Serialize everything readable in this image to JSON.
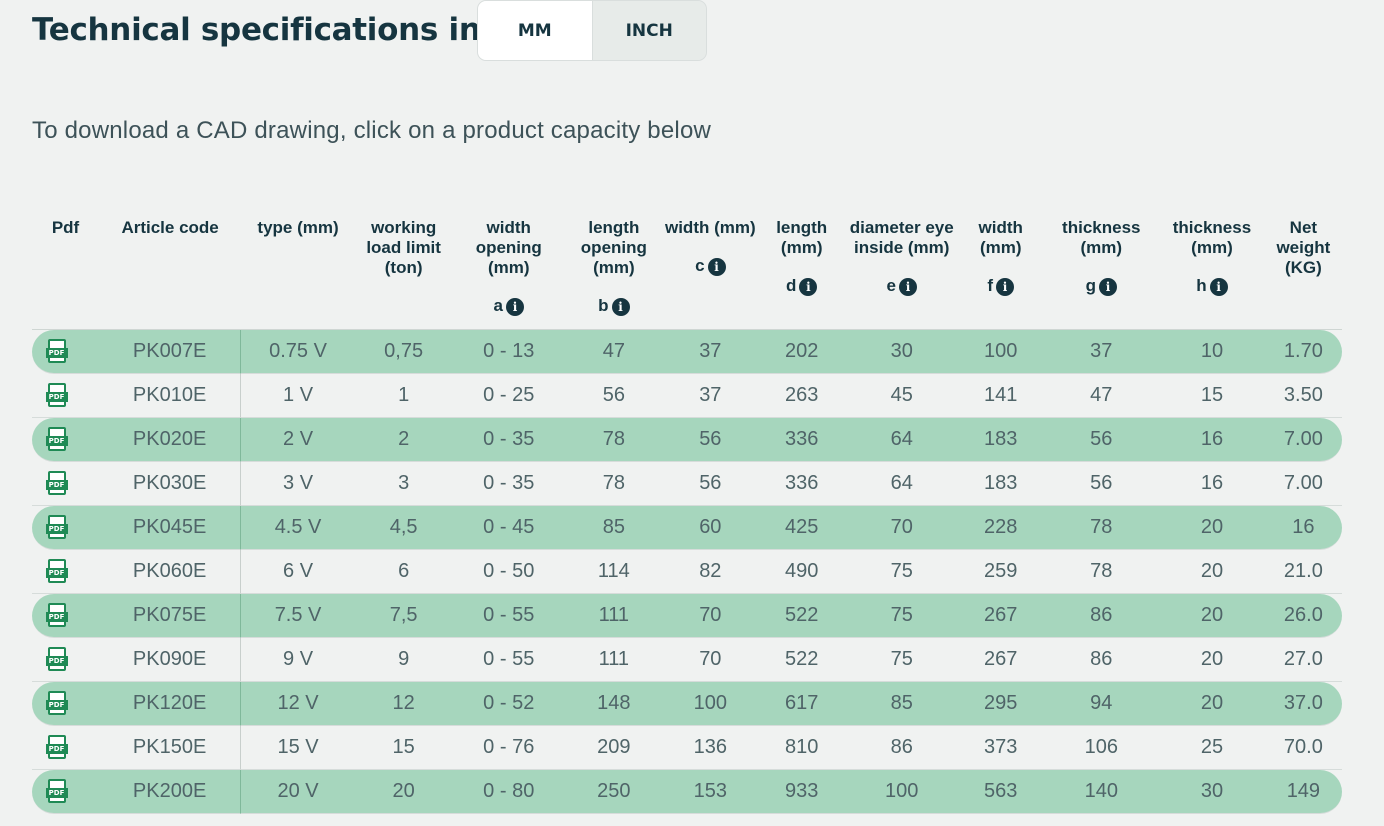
{
  "header": {
    "title": "Technical specifications in",
    "units": [
      "MM",
      "INCH"
    ],
    "selected_unit": "MM"
  },
  "subtitle": "To download a CAD drawing, click on a product capacity below",
  "table": {
    "headers": [
      {
        "label": "Pdf",
        "sub": ""
      },
      {
        "label": "Article code",
        "sub": ""
      },
      {
        "label": "type (mm)",
        "sub": ""
      },
      {
        "label": "working load limit (ton)",
        "sub": ""
      },
      {
        "label": "width opening (mm)",
        "sub": "a"
      },
      {
        "label": "length opening (mm)",
        "sub": "b"
      },
      {
        "label": "width (mm)",
        "sub": "c"
      },
      {
        "label": "length (mm)",
        "sub": "d"
      },
      {
        "label": "diameter eye inside (mm)",
        "sub": "e"
      },
      {
        "label": "width (mm)",
        "sub": "f"
      },
      {
        "label": "thickness (mm)",
        "sub": "g"
      },
      {
        "label": "thickness (mm)",
        "sub": "h"
      },
      {
        "label": "Net weight (KG)",
        "sub": ""
      }
    ],
    "rows": [
      [
        "PK007E",
        "0.75 V",
        "0,75",
        "0 - 13",
        "47",
        "37",
        "202",
        "30",
        "100",
        "37",
        "10",
        "1.70"
      ],
      [
        "PK010E",
        "1 V",
        "1",
        "0 - 25",
        "56",
        "37",
        "263",
        "45",
        "141",
        "47",
        "15",
        "3.50"
      ],
      [
        "PK020E",
        "2 V",
        "2",
        "0 - 35",
        "78",
        "56",
        "336",
        "64",
        "183",
        "56",
        "16",
        "7.00"
      ],
      [
        "PK030E",
        "3 V",
        "3",
        "0 - 35",
        "78",
        "56",
        "336",
        "64",
        "183",
        "56",
        "16",
        "7.00"
      ],
      [
        "PK045E",
        "4.5 V",
        "4,5",
        "0 - 45",
        "85",
        "60",
        "425",
        "70",
        "228",
        "78",
        "20",
        "16"
      ],
      [
        "PK060E",
        "6 V",
        "6",
        "0 - 50",
        "114",
        "82",
        "490",
        "75",
        "259",
        "78",
        "20",
        "21.0"
      ],
      [
        "PK075E",
        "7.5 V",
        "7,5",
        "0 - 55",
        "111",
        "70",
        "522",
        "75",
        "267",
        "86",
        "20",
        "26.0"
      ],
      [
        "PK090E",
        "9 V",
        "9",
        "0 - 55",
        "111",
        "70",
        "522",
        "75",
        "267",
        "86",
        "20",
        "27.0"
      ],
      [
        "PK120E",
        "12 V",
        "12",
        "0 - 52",
        "148",
        "100",
        "617",
        "85",
        "295",
        "94",
        "20",
        "37.0"
      ],
      [
        "PK150E",
        "15 V",
        "15",
        "0 - 76",
        "209",
        "136",
        "810",
        "86",
        "373",
        "106",
        "25",
        "70.0"
      ],
      [
        "PK200E",
        "20 V",
        "20",
        "0 - 80",
        "250",
        "153",
        "933",
        "100",
        "563",
        "140",
        "30",
        "149"
      ]
    ]
  }
}
